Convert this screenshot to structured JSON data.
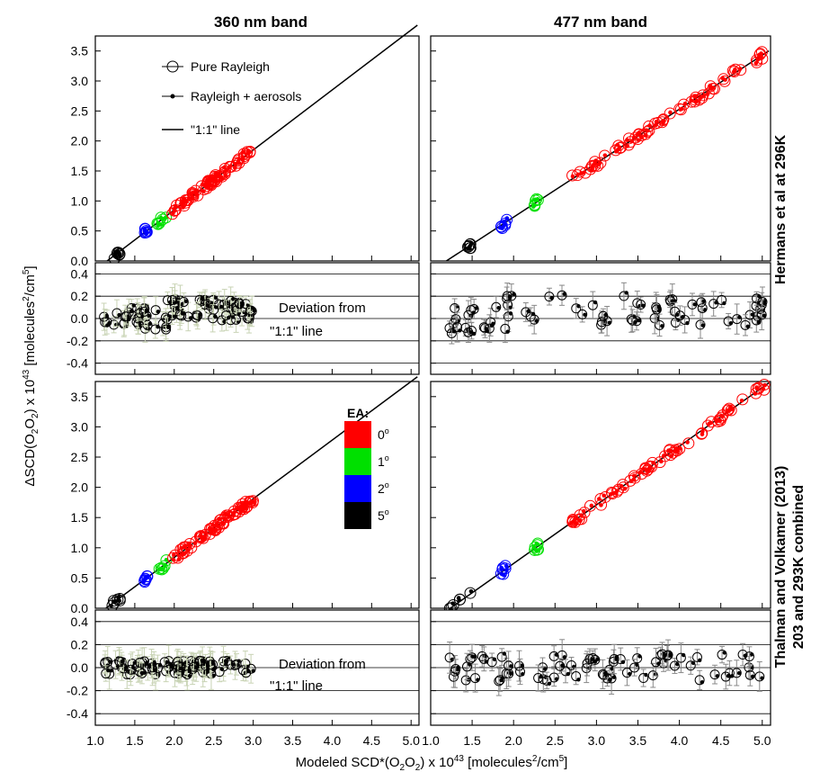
{
  "figure": {
    "column_titles": [
      "360 nm band",
      "477 nm band"
    ],
    "row_titles": [
      {
        "line1": "Hermans et al at 296K"
      },
      {
        "line1": "Thalman and Volkamer (2013)",
        "line2": "203 and 293K combined"
      }
    ],
    "y_label_main": "ΔSCD(O",
    "y_label_sub1": "2",
    "y_label_mid": "O",
    "y_label_sub2": "2",
    "y_label_rest": ") x 10",
    "y_label_sup": "43",
    "y_label_units_pre": " [molecules",
    "y_label_units_sup": "2",
    "y_label_units_mid": "/cm",
    "y_label_units_sup2": "5",
    "y_label_units_end": "]",
    "x_label_pre": "Modeled SCD*(O",
    "x_label_sub1": "2",
    "x_label_mid": "O",
    "x_label_sub2": "2",
    "x_label_rest": ") x 10",
    "x_label_sup": "43",
    "x_label_units_pre": " [molecules",
    "x_label_units_sup": "2",
    "x_label_units_mid": "/cm",
    "x_label_units_sup2": "5",
    "x_label_units_end": "]",
    "legend": {
      "pure_rayleigh": "Pure Rayleigh",
      "rayleigh_aerosols": "Rayleigh + aerosols",
      "one_to_one": "\"1:1\" line"
    },
    "ea_legend": {
      "title": "EA:",
      "items": [
        {
          "label": "0",
          "color": "#ff0000"
        },
        {
          "label": "1",
          "color": "#00e000"
        },
        {
          "label": "2",
          "color": "#0000ff"
        },
        {
          "label": "5",
          "color": "#000000"
        }
      ]
    },
    "deviation_text_line1": "Deviation from",
    "deviation_text_line2": "\"1:1\" line"
  },
  "chart_data": [
    {
      "type": "scatter",
      "panel": "360 nm band / Hermans et al at 296K",
      "xlim": [
        1.0,
        5.1
      ],
      "ylim": [
        0.0,
        3.75
      ],
      "x_ticks": [
        1.0,
        1.5,
        2.0,
        2.5,
        3.0,
        3.5,
        4.0,
        4.5,
        5.0
      ],
      "y_ticks": [
        0.0,
        0.5,
        1.0,
        1.5,
        2.0,
        2.5,
        3.0,
        3.5
      ],
      "one_to_one_line": {
        "slope": 1.0,
        "intercept": -1.15
      },
      "clusters": [
        {
          "ea": "5",
          "x_range": [
            1.22,
            1.35
          ],
          "slope": 1.0,
          "intercept": -1.15
        },
        {
          "ea": "2",
          "x_range": [
            1.62,
            1.68
          ],
          "slope": 1.0,
          "intercept": -1.15
        },
        {
          "ea": "1",
          "x_range": [
            1.78,
            1.9
          ],
          "slope": 1.0,
          "intercept": -1.15
        },
        {
          "ea": "0",
          "x_range": [
            1.95,
            3.0
          ],
          "slope": 1.0,
          "intercept": -1.15
        }
      ]
    },
    {
      "type": "scatter",
      "panel": "477 nm band / Hermans et al at 296K",
      "xlim": [
        1.0,
        5.1
      ],
      "ylim": [
        0.0,
        3.75
      ],
      "x_ticks": [
        1.0,
        1.5,
        2.0,
        2.5,
        3.0,
        3.5,
        4.0,
        4.5,
        5.0
      ],
      "y_ticks": [
        0.0,
        0.5,
        1.0,
        1.5,
        2.0,
        2.5,
        3.0,
        3.5
      ],
      "one_to_one_line": {
        "slope": 0.9,
        "intercept": -1.07
      },
      "clusters": [
        {
          "ea": "5",
          "x_range": [
            1.45,
            1.5
          ],
          "slope": 0.9,
          "intercept": -1.07
        },
        {
          "ea": "2",
          "x_range": [
            1.85,
            1.93
          ],
          "slope": 0.9,
          "intercept": -1.07
        },
        {
          "ea": "1",
          "x_range": [
            2.25,
            2.3
          ],
          "slope": 0.9,
          "intercept": -1.07
        },
        {
          "ea": "0",
          "x_range": [
            2.7,
            5.05
          ],
          "slope": 0.9,
          "intercept": -1.07
        }
      ]
    },
    {
      "type": "scatter",
      "panel": "360 nm band / deviation (Hermans)",
      "xlim": [
        1.0,
        5.1
      ],
      "ylim": [
        -0.5,
        0.5
      ],
      "y_ticks": [
        -0.4,
        -0.2,
        0.0,
        0.2,
        0.4
      ],
      "x_range": [
        1.1,
        3.0
      ],
      "spread": 0.1
    },
    {
      "type": "scatter",
      "panel": "477 nm band / deviation (Hermans)",
      "xlim": [
        1.0,
        5.1
      ],
      "ylim": [
        -0.5,
        0.5
      ],
      "y_ticks": [
        -0.4,
        -0.2,
        0.0,
        0.2,
        0.4
      ],
      "x_range": [
        1.2,
        5.05
      ],
      "spread": 0.14
    },
    {
      "type": "scatter",
      "panel": "360 nm band / Thalman and Volkamer (2013)",
      "xlim": [
        1.0,
        5.1
      ],
      "ylim": [
        0.0,
        3.75
      ],
      "x_ticks": [
        1.0,
        1.5,
        2.0,
        2.5,
        3.0,
        3.5,
        4.0,
        4.5,
        5.0
      ],
      "y_ticks": [
        0.0,
        0.5,
        1.0,
        1.5,
        2.0,
        2.5,
        3.0,
        3.5
      ],
      "one_to_one_line": {
        "slope": 0.97,
        "intercept": -1.1
      },
      "clusters": [
        {
          "ea": "5",
          "x_range": [
            1.15,
            1.35
          ],
          "slope": 0.97,
          "intercept": -1.1
        },
        {
          "ea": "2",
          "x_range": [
            1.62,
            1.66
          ],
          "slope": 0.97,
          "intercept": -1.1
        },
        {
          "ea": "1",
          "x_range": [
            1.8,
            1.9
          ],
          "slope": 0.97,
          "intercept": -1.1
        },
        {
          "ea": "0",
          "x_range": [
            1.95,
            3.0
          ],
          "slope": 0.97,
          "intercept": -1.1
        }
      ]
    },
    {
      "type": "scatter",
      "panel": "477 nm band / Thalman and Volkamer (2013)",
      "xlim": [
        1.0,
        5.1
      ],
      "ylim": [
        0.0,
        3.75
      ],
      "x_ticks": [
        1.0,
        1.5,
        2.0,
        2.5,
        3.0,
        3.5,
        4.0,
        4.5,
        5.0
      ],
      "y_ticks": [
        0.0,
        0.5,
        1.0,
        1.5,
        2.0,
        2.5,
        3.0,
        3.5
      ],
      "one_to_one_line": {
        "slope": 0.97,
        "intercept": -1.2
      },
      "clusters": [
        {
          "ea": "5",
          "x_range": [
            1.2,
            1.5
          ],
          "slope": 0.97,
          "intercept": -1.2
        },
        {
          "ea": "2",
          "x_range": [
            1.85,
            1.93
          ],
          "slope": 0.97,
          "intercept": -1.2
        },
        {
          "ea": "1",
          "x_range": [
            2.25,
            2.3
          ],
          "slope": 0.97,
          "intercept": -1.2
        },
        {
          "ea": "0",
          "x_range": [
            2.7,
            5.05
          ],
          "slope": 0.97,
          "intercept": -1.2
        }
      ]
    },
    {
      "type": "scatter",
      "panel": "360 nm band / deviation (Thalman)",
      "xlim": [
        1.0,
        5.1
      ],
      "ylim": [
        -0.5,
        0.5
      ],
      "y_ticks": [
        -0.4,
        -0.2,
        0.0,
        0.2,
        0.4
      ],
      "x_range": [
        1.1,
        3.0
      ],
      "spread": 0.06
    },
    {
      "type": "scatter",
      "panel": "477 nm band / deviation (Thalman)",
      "xlim": [
        1.0,
        5.1
      ],
      "ylim": [
        -0.5,
        0.5
      ],
      "y_ticks": [
        -0.4,
        -0.2,
        0.0,
        0.2,
        0.4
      ],
      "x_range": [
        1.2,
        5.05
      ],
      "spread": 0.12
    }
  ]
}
